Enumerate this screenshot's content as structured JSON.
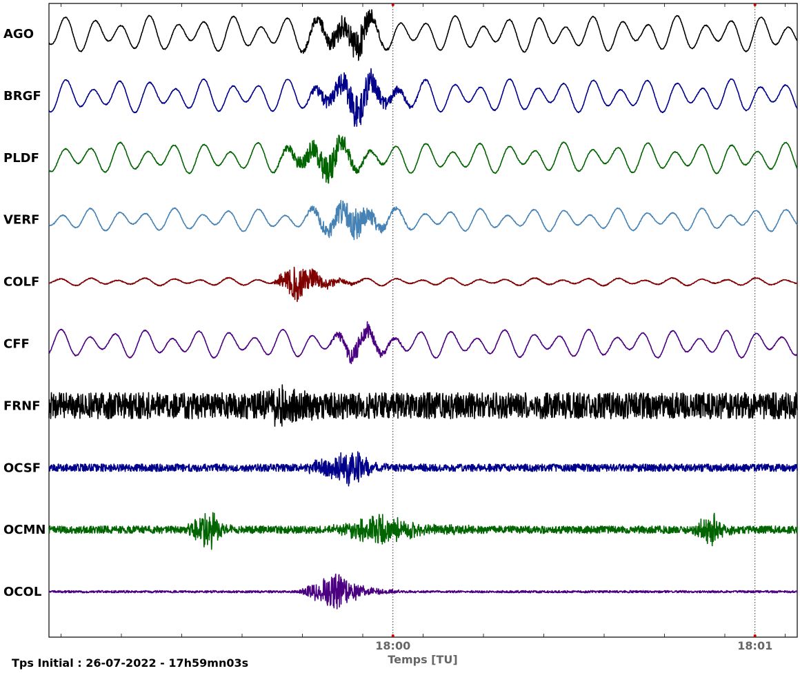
{
  "chart_data": {
    "type": "line",
    "title": "",
    "xlabel": "Temps [TU]",
    "ylabel": "",
    "x_range_seconds_after_start": [
      0,
      124
    ],
    "x_ticks": [
      {
        "label": "18:00",
        "seconds_after_start": 57
      },
      {
        "label": "18:01",
        "seconds_after_start": 117
      }
    ],
    "grid": "vertical dotted lines at labeled ticks",
    "legend": "none (station names at left)",
    "series": [
      {
        "name": "AGO",
        "color": "#000000",
        "style": "low-frequency swell (~4 s period) with burst of higher-frequency energy from ~41 s to ~57 s",
        "bursts": [
          {
            "start_s": 41,
            "peak_s": 52,
            "end_s": 57,
            "rel_amp": 0.9
          }
        ],
        "baseline_rel_amp": 0.7
      },
      {
        "name": "BRGF",
        "color": "#00008b",
        "style": "swell with high-frequency burst",
        "bursts": [
          {
            "start_s": 42,
            "peak_s": 52,
            "end_s": 63,
            "rel_amp": 1.0
          }
        ],
        "baseline_rel_amp": 0.65
      },
      {
        "name": "PLDF",
        "color": "#006400",
        "style": "swell with high-frequency burst",
        "bursts": [
          {
            "start_s": 37,
            "peak_s": 47,
            "end_s": 56,
            "rel_amp": 0.8
          }
        ],
        "baseline_rel_amp": 0.6
      },
      {
        "name": "VERF",
        "color": "#4682b4",
        "style": "swell with high-frequency burst",
        "bursts": [
          {
            "start_s": 42,
            "peak_s": 51,
            "end_s": 60,
            "rel_amp": 0.9
          }
        ],
        "baseline_rel_amp": 0.45
      },
      {
        "name": "COLF",
        "color": "#800000",
        "style": "small swell with sharp onset burst",
        "bursts": [
          {
            "start_s": 37,
            "peak_s": 41,
            "end_s": 52,
            "rel_amp": 1.0
          }
        ],
        "baseline_rel_amp": 0.15
      },
      {
        "name": "CFF",
        "color": "#4b0082",
        "style": "swell plus persistent noise",
        "bursts": [
          {
            "start_s": 46,
            "peak_s": 52,
            "end_s": 60,
            "rel_amp": 0.6
          }
        ],
        "baseline_rel_amp": 0.55
      },
      {
        "name": "FRNF",
        "color": "#000000",
        "style": "broadband noise",
        "bursts": [
          {
            "start_s": 34,
            "peak_s": 39,
            "end_s": 46,
            "rel_amp": 0.6
          }
        ],
        "baseline_rel_amp": 0.7
      },
      {
        "name": "OCSF",
        "color": "#00008b",
        "style": "high-frequency noise with burst",
        "bursts": [
          {
            "start_s": 42,
            "peak_s": 51,
            "end_s": 56,
            "rel_amp": 1.0
          }
        ],
        "baseline_rel_amp": 0.2
      },
      {
        "name": "OCMN",
        "color": "#006400",
        "style": "high-frequency noise with several bursts",
        "bursts": [
          {
            "start_s": 22,
            "peak_s": 27,
            "end_s": 31,
            "rel_amp": 1.0
          },
          {
            "start_s": 46,
            "peak_s": 55,
            "end_s": 71,
            "rel_amp": 0.8
          },
          {
            "start_s": 106,
            "peak_s": 110,
            "end_s": 114,
            "rel_amp": 0.9
          }
        ],
        "baseline_rel_amp": 0.2
      },
      {
        "name": "OCOL",
        "color": "#4b0082",
        "style": "low noise with strong burst",
        "bursts": [
          {
            "start_s": 41,
            "peak_s": 48,
            "end_s": 58,
            "rel_amp": 1.0
          }
        ],
        "baseline_rel_amp": 0.06
      }
    ]
  },
  "footer": {
    "initial_time_text": "Tps Initial : 26-07-2022 - 17h59mn03s"
  },
  "colors": {
    "axis": "#000000",
    "tick_label": "#666666",
    "marker": "#cc0000"
  }
}
